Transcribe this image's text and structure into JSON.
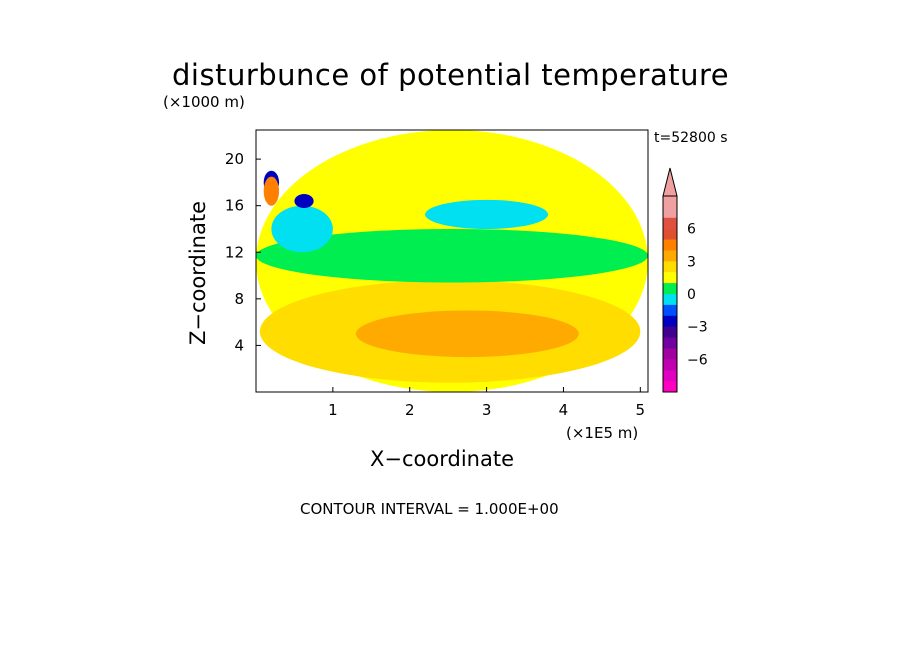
{
  "chart_data": {
    "type": "heatmap",
    "title": "disturbunce of potential temperature",
    "time_label": "t=52800 s",
    "xlabel": "X−coordinate",
    "ylabel": "Z−coordinate",
    "x_unit": "(×1E5 m)",
    "y_unit": "(×1000 m)",
    "contour_interval": "CONTOUR INTERVAL = 1.000E+00",
    "xlim": [
      0,
      5.1
    ],
    "ylim": [
      0,
      22.5
    ],
    "x_ticks": [
      1,
      2,
      3,
      4,
      5
    ],
    "y_ticks": [
      4,
      8,
      12,
      16,
      20
    ],
    "colorbar": {
      "tick_labels": [
        "6",
        "3",
        "0",
        "−3",
        "−6"
      ],
      "tick_values": [
        6,
        3,
        0,
        -3,
        -6
      ],
      "levels": [
        9,
        8,
        7,
        6,
        5,
        4,
        3,
        2,
        1,
        0,
        -1,
        -2,
        -3,
        -4,
        -5,
        -6,
        -7,
        -8
      ],
      "colors": [
        "#f0a0a0",
        "#f0a0a0",
        "#e05040",
        "#e05030",
        "#ff7f00",
        "#ffaa00",
        "#ffdd00",
        "#ffff00",
        "#00ee50",
        "#00e0f0",
        "#0050ff",
        "#0000c0",
        "#400090",
        "#7000a0",
        "#a000a0",
        "#c000b0",
        "#e000c0",
        "#ff00c0"
      ]
    },
    "field_regions": [
      {
        "level": 2,
        "x": [
          0,
          5.1
        ],
        "z": [
          0,
          22.5
        ]
      },
      {
        "level": 3,
        "x": [
          0.05,
          5.0
        ],
        "z": [
          0.8,
          9.6
        ]
      },
      {
        "level": 4,
        "x": [
          1.3,
          4.2
        ],
        "z": [
          3.0,
          7.0
        ]
      },
      {
        "level": 1,
        "x": [
          0,
          5.1
        ],
        "z": [
          9.4,
          14.0
        ]
      },
      {
        "level": 0,
        "x": [
          0.2,
          1.0
        ],
        "z": [
          12.0,
          16.0
        ]
      },
      {
        "level": 0,
        "x": [
          2.2,
          3.8
        ],
        "z": [
          14.0,
          16.5
        ]
      },
      {
        "level": -2,
        "x": [
          0.1,
          0.3
        ],
        "z": [
          17.0,
          19.0
        ]
      },
      {
        "level": -2,
        "x": [
          0.5,
          0.75
        ],
        "z": [
          15.8,
          17.0
        ]
      },
      {
        "level": 5,
        "x": [
          0.1,
          0.3
        ],
        "z": [
          16.0,
          18.5
        ]
      }
    ]
  }
}
